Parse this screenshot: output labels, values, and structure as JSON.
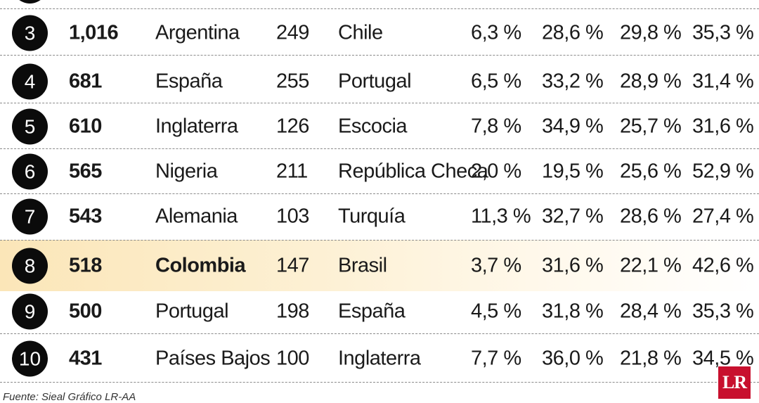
{
  "rows": [
    {
      "rank": "3",
      "count": "1,016",
      "country": "Argentina",
      "n2": "249",
      "opponent": "Chile",
      "p1": "6,3 %",
      "p2": "28,6 %",
      "p3": "29,8 %",
      "p4": "35,3 %"
    },
    {
      "rank": "4",
      "count": "681",
      "country": "España",
      "n2": "255",
      "opponent": "Portugal",
      "p1": "6,5 %",
      "p2": "33,2 %",
      "p3": "28,9 %",
      "p4": "31,4 %"
    },
    {
      "rank": "5",
      "count": "610",
      "country": "Inglaterra",
      "n2": "126",
      "opponent": "Escocia",
      "p1": "7,8 %",
      "p2": "34,9 %",
      "p3": "25,7 %",
      "p4": "31,6 %"
    },
    {
      "rank": "6",
      "count": "565",
      "country": "Nigeria",
      "n2": "211",
      "opponent": "República Checa",
      "p1": "2,0 %",
      "p2": "19,5 %",
      "p3": "25,6 %",
      "p4": "52,9 %"
    },
    {
      "rank": "7",
      "count": "543",
      "country": "Alemania",
      "n2": "103",
      "opponent": "Turquía",
      "p1": "11,3 %",
      "p2": "32,7 %",
      "p3": "28,6 %",
      "p4": "27,4 %"
    },
    {
      "rank": "8",
      "count": "518",
      "country": "Colombia",
      "n2": "147",
      "opponent": "Brasil",
      "p1": "3,7 %",
      "p2": "31,6 %",
      "p3": "22,1 %",
      "p4": "42,6 %"
    },
    {
      "rank": "9",
      "count": "500",
      "country": "Portugal",
      "n2": "198",
      "opponent": "España",
      "p1": "4,5 %",
      "p2": "31,8 %",
      "p3": "28,4 %",
      "p4": "35,3 %"
    },
    {
      "rank": "10",
      "count": "431",
      "country": "Países Bajos",
      "n2": "100",
      "opponent": "Inglaterra",
      "p1": "7,7 %",
      "p2": "36,0 %",
      "p3": "21,8 %",
      "p4": "34,5 %"
    }
  ],
  "source": "Fuente: Sieal Gráfico LR-AA",
  "logo": "LR",
  "colors": {
    "highlight": "#fbe6b8",
    "circle": "#0b0b0b",
    "logo": "#c8102e"
  }
}
